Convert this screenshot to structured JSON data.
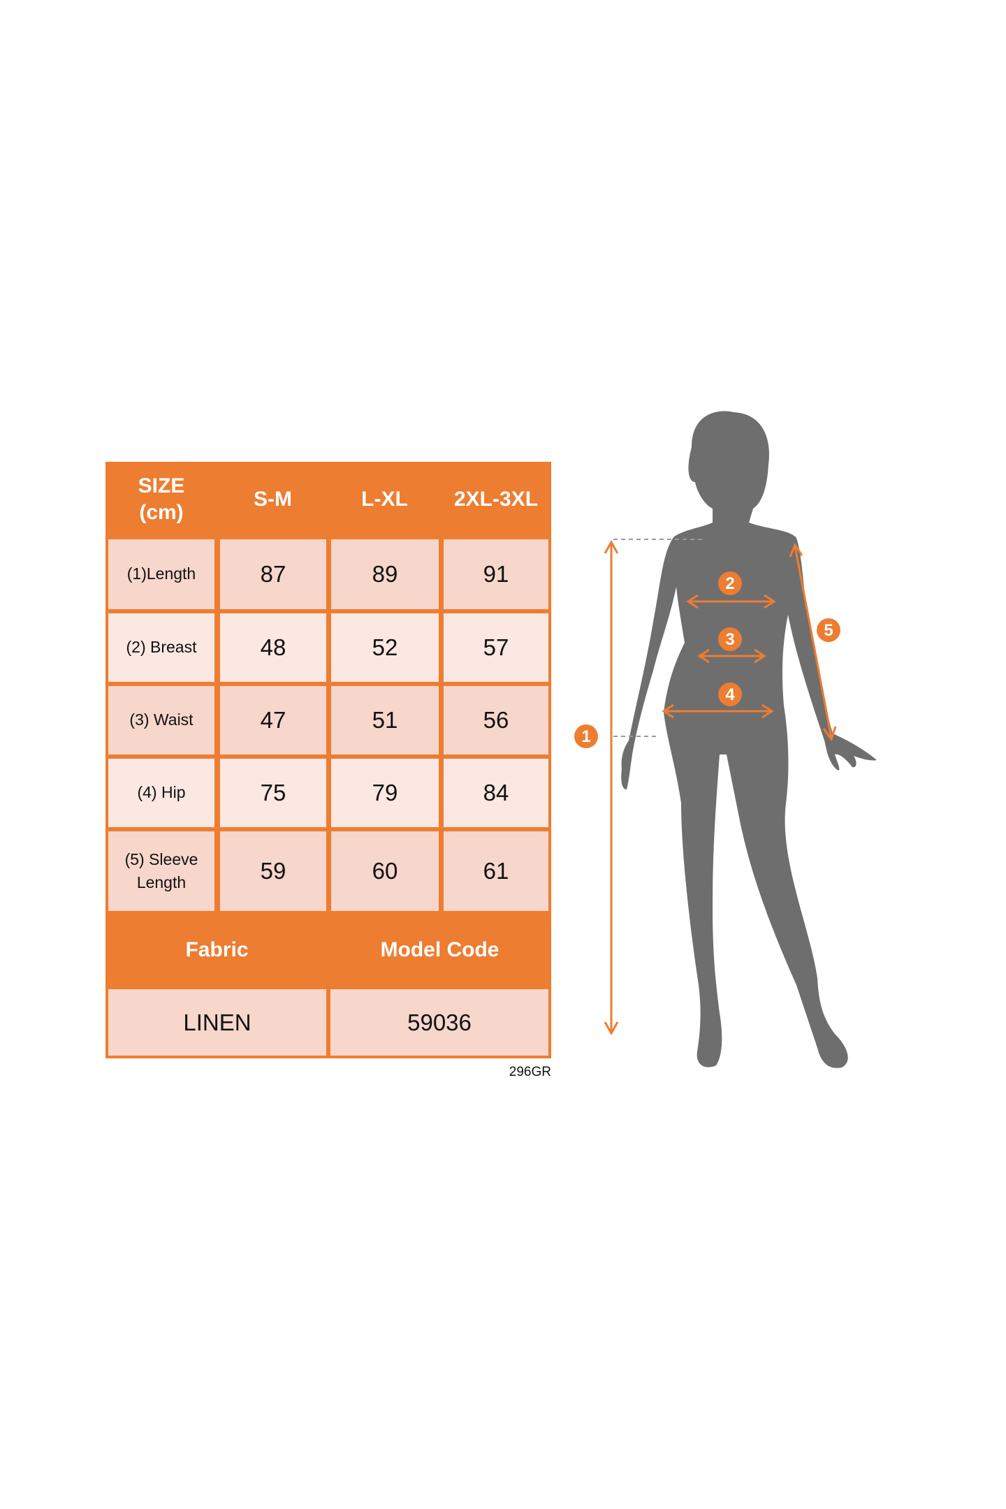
{
  "size_chart": {
    "header": {
      "size_label": "SIZE\n(cm)",
      "sizes": [
        "S-M",
        "L-XL",
        "2XL-3XL"
      ]
    },
    "rows": [
      {
        "label": "(1)Length",
        "values": [
          "87",
          "89",
          "91"
        ]
      },
      {
        "label": "(2) Breast",
        "values": [
          "48",
          "52",
          "57"
        ]
      },
      {
        "label": "(3) Waist",
        "values": [
          "47",
          "51",
          "56"
        ]
      },
      {
        "label": "(4) Hip",
        "values": [
          "75",
          "79",
          "84"
        ]
      },
      {
        "label": "(5) Sleeve\nLength",
        "values": [
          "59",
          "60",
          "61"
        ]
      }
    ],
    "footer_headers": {
      "fabric": "Fabric",
      "model_code": "Model Code"
    },
    "footer_values": {
      "fabric": "LINEN",
      "model_code": "59036"
    },
    "code": "296GR"
  },
  "figure": {
    "markers": [
      "1",
      "2",
      "3",
      "4",
      "5"
    ]
  },
  "colors": {
    "accent": "#ED7D31",
    "cell_dark": "#F7D6CB",
    "cell_light": "#FBE8E2",
    "silhouette": "#6E6E6E"
  }
}
